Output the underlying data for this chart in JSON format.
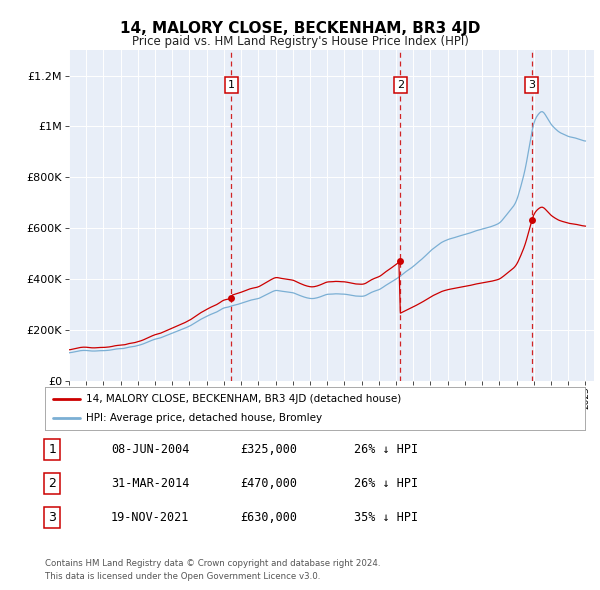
{
  "title": "14, MALORY CLOSE, BECKENHAM, BR3 4JD",
  "subtitle": "Price paid vs. HM Land Registry's House Price Index (HPI)",
  "footer1": "Contains HM Land Registry data © Crown copyright and database right 2024.",
  "footer2": "This data is licensed under the Open Government Licence v3.0.",
  "legend_line1": "14, MALORY CLOSE, BECKENHAM, BR3 4JD (detached house)",
  "legend_line2": "HPI: Average price, detached house, Bromley",
  "sale_color": "#cc0000",
  "hpi_color": "#7bafd4",
  "vline_color": "#cc0000",
  "plot_bg": "#e8eef8",
  "ylim": [
    0,
    1300000
  ],
  "yticks": [
    0,
    200000,
    400000,
    600000,
    800000,
    1000000,
    1200000
  ],
  "ytick_labels": [
    "£0",
    "£200K",
    "£400K",
    "£600K",
    "£800K",
    "£1M",
    "£1.2M"
  ],
  "sale_dates": [
    2004.44,
    2014.25,
    2021.89
  ],
  "sale_prices": [
    325000,
    470000,
    630000
  ],
  "sale_labels": [
    "1",
    "2",
    "3"
  ],
  "table_data": [
    [
      "1",
      "08-JUN-2004",
      "£325,000",
      "26% ↓ HPI"
    ],
    [
      "2",
      "31-MAR-2014",
      "£470,000",
      "26% ↓ HPI"
    ],
    [
      "3",
      "19-NOV-2021",
      "£630,000",
      "35% ↓ HPI"
    ]
  ],
  "xmin": 1995.0,
  "xmax": 2025.5,
  "xticks": [
    1995,
    1996,
    1997,
    1998,
    1999,
    2000,
    2001,
    2002,
    2003,
    2004,
    2005,
    2006,
    2007,
    2008,
    2009,
    2010,
    2011,
    2012,
    2013,
    2014,
    2015,
    2016,
    2017,
    2018,
    2019,
    2020,
    2021,
    2022,
    2023,
    2024,
    2025
  ]
}
